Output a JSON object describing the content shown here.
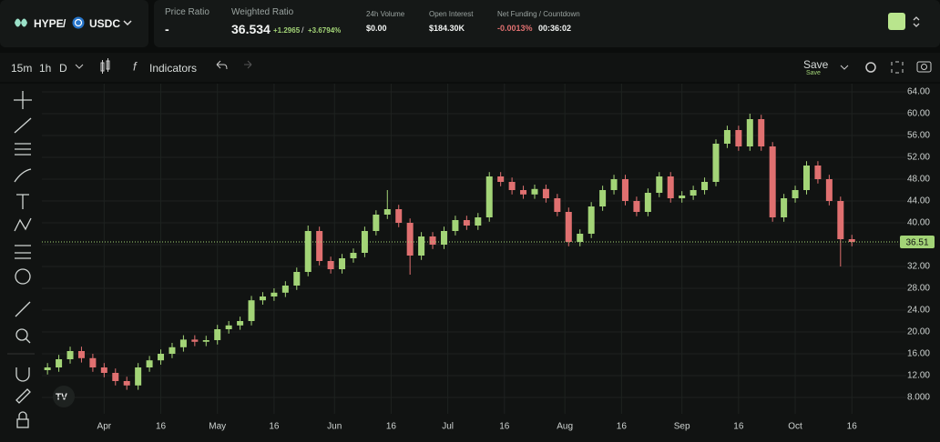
{
  "header": {
    "base": "HYPE",
    "separator": "/",
    "quote": "USDC",
    "price_ratio_label": "Price Ratio",
    "price_ratio": "-",
    "weighted_ratio_label": "Weighted Ratio",
    "weighted_ratio": "36.534",
    "change": "+1.2965",
    "change_separator": "/",
    "change_pct": "+3.6794%",
    "volume_label": "24h Volume",
    "volume": "$0.00",
    "open_interest_label": "Open Interest",
    "open_interest": "$184.30K",
    "funding_label": "Net Funding / Countdown",
    "funding": "-0.0013%",
    "countdown": "00:36:02"
  },
  "toolbar": {
    "intervals": [
      "15m",
      "1h",
      "D"
    ],
    "indicators": "Indicators",
    "save": "Save",
    "save_sub": "Save"
  },
  "chart_data": {
    "type": "candlestick",
    "up_color": "#a3d477",
    "down_color": "#e07070",
    "grid": true,
    "x": [
      -15,
      -12,
      -9,
      -6,
      -3,
      0,
      3,
      6,
      9,
      12,
      15,
      18,
      21,
      24,
      27,
      30,
      33,
      36,
      39,
      42,
      45,
      48,
      51,
      54,
      57,
      60,
      63,
      66,
      69,
      72,
      75,
      78,
      81,
      84,
      87,
      90,
      93,
      96,
      99,
      102,
      105,
      108,
      111,
      114,
      117,
      120,
      123,
      126,
      129,
      132,
      135,
      138,
      141,
      144,
      147,
      150,
      153,
      156,
      159,
      162,
      165,
      168,
      171,
      174,
      177,
      180,
      183,
      186,
      189,
      192,
      195,
      198
    ],
    "open": [
      13.0,
      13.5,
      15,
      16.5,
      15.2,
      13.5,
      12.5,
      11,
      10.2,
      13.5,
      14.8,
      16,
      17.2,
      18.6,
      18.2,
      18.5,
      20.5,
      21.2,
      22,
      25.8,
      26.5,
      27.2,
      28.5,
      31,
      38.5,
      33,
      31.5,
      33.5,
      34.5,
      38.5,
      41.5,
      42.5,
      40,
      34,
      37.5,
      36,
      38.5,
      40.5,
      39.5,
      41,
      48.5,
      47.5,
      46,
      45.2,
      46.2,
      44.5,
      42,
      36.5,
      38,
      43,
      46,
      48,
      44,
      42,
      45.5,
      48.5,
      44.5,
      45,
      46,
      47.5,
      54.5,
      57,
      54,
      59,
      54,
      41,
      44.5,
      46,
      50.5,
      48,
      44,
      37
    ],
    "high": [
      14.3,
      15.8,
      17.3,
      17.3,
      16,
      14.3,
      13.3,
      11.8,
      14.3,
      15.6,
      16.8,
      18,
      19.4,
      19.4,
      19.3,
      21.3,
      22,
      22.8,
      26.6,
      27.3,
      28,
      29.3,
      31.8,
      39.5,
      39.3,
      33.8,
      34.3,
      35.3,
      39.3,
      42.3,
      46,
      43.3,
      40.8,
      38.3,
      38.3,
      39.3,
      41.3,
      41.3,
      41.8,
      49.3,
      49.3,
      48.3,
      46.8,
      47,
      47,
      45.3,
      42.8,
      38.8,
      43.8,
      46.8,
      48.8,
      48.8,
      44.8,
      46.3,
      49.3,
      49.3,
      45.8,
      46.8,
      48.3,
      55.3,
      57.8,
      57.8,
      60,
      59.8,
      54.8,
      45.3,
      46.8,
      51.3,
      51.3,
      48.8,
      44.8,
      37.8
    ],
    "low": [
      12.2,
      12.7,
      14.2,
      14.4,
      12.7,
      11.7,
      10.2,
      9.4,
      9.4,
      12.7,
      14,
      15.2,
      16.4,
      17.4,
      17.4,
      17.7,
      19.7,
      20.4,
      21.2,
      25,
      25.7,
      26.4,
      27.7,
      30.2,
      32.2,
      30.7,
      30.7,
      32.7,
      33.7,
      37.7,
      40.7,
      39.2,
      30.5,
      33.2,
      35.2,
      35.2,
      37.7,
      38.7,
      38.7,
      40.2,
      46.7,
      45.2,
      44.4,
      44.4,
      43.7,
      41.2,
      35.7,
      35.7,
      37.2,
      42.2,
      45.2,
      43.2,
      41.2,
      41.2,
      44.7,
      43.7,
      43.7,
      44.2,
      45.2,
      46.7,
      53.7,
      53.2,
      53.2,
      53.2,
      40.2,
      40.2,
      43.7,
      45.2,
      47.2,
      43.2,
      32,
      35.7
    ],
    "close": [
      13.5,
      15,
      16.5,
      15.2,
      13.5,
      12.5,
      11,
      10.2,
      13.5,
      14.8,
      16,
      17.2,
      18.6,
      18.2,
      18.5,
      20.5,
      21.2,
      22,
      25.8,
      26.5,
      27.2,
      28.5,
      31,
      38.5,
      33,
      31.5,
      33.5,
      34.5,
      38.5,
      41.5,
      42.5,
      40,
      34,
      37.5,
      36,
      38.5,
      40.5,
      39.5,
      41,
      48.5,
      47.5,
      46,
      45.2,
      46.2,
      44.5,
      42,
      36.5,
      38,
      43,
      46,
      48,
      44,
      42,
      45.5,
      48.5,
      44.5,
      45,
      46,
      47.5,
      54.5,
      57,
      54,
      59,
      54,
      41,
      44.5,
      46,
      50.5,
      48,
      44,
      37,
      36.5
    ],
    "last_price": {
      "value": 36.51,
      "label": "36.51"
    },
    "xlim": [
      -16,
      210
    ],
    "xticks": [
      {
        "value": 0,
        "label": "Apr"
      },
      {
        "value": 15,
        "label": "16"
      },
      {
        "value": 30,
        "label": "May"
      },
      {
        "value": 45,
        "label": "16"
      },
      {
        "value": 61,
        "label": "Jun"
      },
      {
        "value": 76,
        "label": "16"
      },
      {
        "value": 91,
        "label": "Jul"
      },
      {
        "value": 106,
        "label": "16"
      },
      {
        "value": 122,
        "label": "Aug"
      },
      {
        "value": 137,
        "label": "16"
      },
      {
        "value": 153,
        "label": "Sep"
      },
      {
        "value": 168,
        "label": "16"
      },
      {
        "value": 183,
        "label": "Oct"
      },
      {
        "value": 198,
        "label": "16"
      }
    ],
    "ylim": [
      5,
      65.5
    ],
    "yticks": [
      {
        "value": 8,
        "label": "8.000"
      },
      {
        "value": 12,
        "label": "12.00"
      },
      {
        "value": 16,
        "label": "16.00"
      },
      {
        "value": 20,
        "label": "20.00"
      },
      {
        "value": 24,
        "label": "24.00"
      },
      {
        "value": 28,
        "label": "28.00"
      },
      {
        "value": 32,
        "label": "32.00"
      },
      {
        "value": 36,
        "label": "36.00"
      },
      {
        "value": 40,
        "label": "40.00"
      },
      {
        "value": 44,
        "label": "44.00"
      },
      {
        "value": 48,
        "label": "48.00"
      },
      {
        "value": 52,
        "label": "52.00"
      },
      {
        "value": 56,
        "label": "56.00"
      },
      {
        "value": 60,
        "label": "60.00"
      },
      {
        "value": 64,
        "label": "64.00"
      }
    ]
  }
}
